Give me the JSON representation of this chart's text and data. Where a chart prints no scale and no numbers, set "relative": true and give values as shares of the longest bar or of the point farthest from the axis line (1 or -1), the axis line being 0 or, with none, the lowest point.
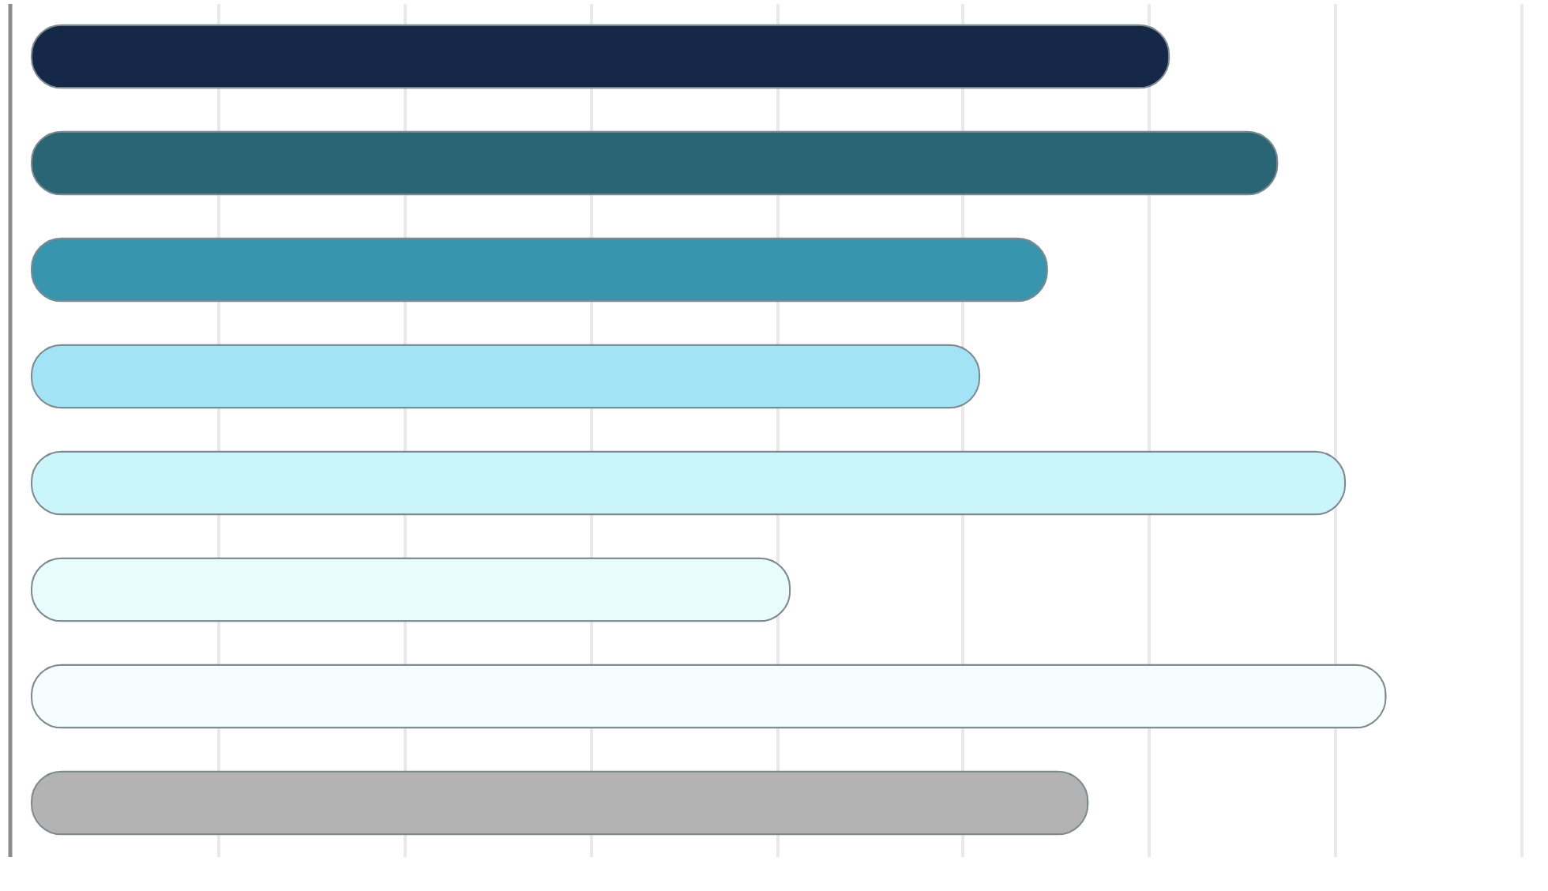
{
  "chart_data": {
    "type": "bar",
    "orientation": "horizontal",
    "relative": true,
    "tick_labels": false,
    "grid": "x",
    "categories": [
      null,
      null,
      null,
      null,
      null,
      null,
      null,
      null
    ],
    "values": [
      0.84,
      0.92,
      0.75,
      0.7,
      0.97,
      0.56,
      1,
      0.78
    ],
    "colors": [
      "#152848",
      "#296574",
      "#3796ae",
      "#a2e4f5",
      "#c9f5fb",
      "#e8fbfd",
      "#f5fdfe",
      "#b3b3b3"
    ]
  }
}
